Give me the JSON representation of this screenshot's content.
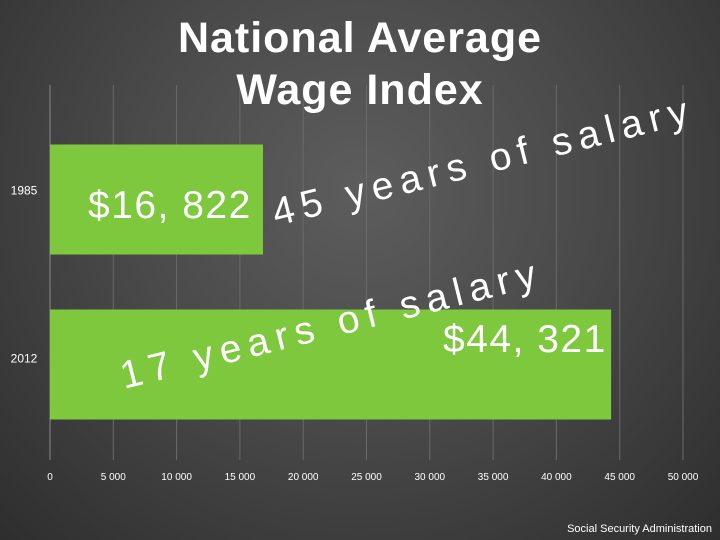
{
  "chart_data": {
    "type": "bar",
    "orientation": "horizontal",
    "title": "National Average Wage Index",
    "categories": [
      "1985",
      "2012"
    ],
    "values": [
      16822,
      44321
    ],
    "data_labels": [
      "$16, 822",
      "$44, 321"
    ],
    "xlim": [
      0,
      50000
    ],
    "xticks": [
      "0",
      "5 000",
      "10 000",
      "15 000",
      "20 000",
      "25 000",
      "30 000",
      "35 000",
      "40 000",
      "45 000",
      "50 000"
    ],
    "grid": true,
    "bar_color": "#7dc83c",
    "annotations": [
      "45 years of salary",
      "17 years of salary"
    ]
  },
  "source": "Social Security Administration",
  "colors": {
    "bar": "#7dc83c",
    "text": "#ffffff",
    "grid": "#6a6a6a"
  }
}
